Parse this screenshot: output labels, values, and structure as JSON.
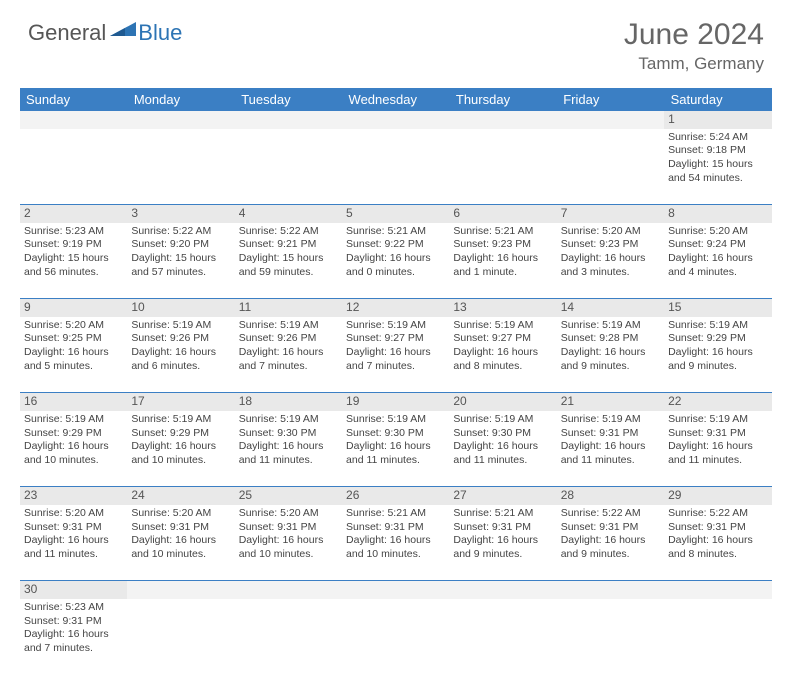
{
  "brand": {
    "part1": "General",
    "part2": "Blue",
    "accent_color": "#2d74b4",
    "text_color": "#565656"
  },
  "title": {
    "month": "June 2024",
    "location": "Tamm, Germany"
  },
  "table": {
    "header_bg": "#3b7fc4",
    "header_fg": "#ffffff",
    "row_divider": "#3b7fc4",
    "daynum_bg": "#e9e9e9",
    "columns": [
      "Sunday",
      "Monday",
      "Tuesday",
      "Wednesday",
      "Thursday",
      "Friday",
      "Saturday"
    ]
  },
  "weeks": [
    [
      null,
      null,
      null,
      null,
      null,
      null,
      {
        "n": "1",
        "sr": "Sunrise: 5:24 AM",
        "ss": "Sunset: 9:18 PM",
        "d1": "Daylight: 15 hours",
        "d2": "and 54 minutes."
      }
    ],
    [
      {
        "n": "2",
        "sr": "Sunrise: 5:23 AM",
        "ss": "Sunset: 9:19 PM",
        "d1": "Daylight: 15 hours",
        "d2": "and 56 minutes."
      },
      {
        "n": "3",
        "sr": "Sunrise: 5:22 AM",
        "ss": "Sunset: 9:20 PM",
        "d1": "Daylight: 15 hours",
        "d2": "and 57 minutes."
      },
      {
        "n": "4",
        "sr": "Sunrise: 5:22 AM",
        "ss": "Sunset: 9:21 PM",
        "d1": "Daylight: 15 hours",
        "d2": "and 59 minutes."
      },
      {
        "n": "5",
        "sr": "Sunrise: 5:21 AM",
        "ss": "Sunset: 9:22 PM",
        "d1": "Daylight: 16 hours",
        "d2": "and 0 minutes."
      },
      {
        "n": "6",
        "sr": "Sunrise: 5:21 AM",
        "ss": "Sunset: 9:23 PM",
        "d1": "Daylight: 16 hours",
        "d2": "and 1 minute."
      },
      {
        "n": "7",
        "sr": "Sunrise: 5:20 AM",
        "ss": "Sunset: 9:23 PM",
        "d1": "Daylight: 16 hours",
        "d2": "and 3 minutes."
      },
      {
        "n": "8",
        "sr": "Sunrise: 5:20 AM",
        "ss": "Sunset: 9:24 PM",
        "d1": "Daylight: 16 hours",
        "d2": "and 4 minutes."
      }
    ],
    [
      {
        "n": "9",
        "sr": "Sunrise: 5:20 AM",
        "ss": "Sunset: 9:25 PM",
        "d1": "Daylight: 16 hours",
        "d2": "and 5 minutes."
      },
      {
        "n": "10",
        "sr": "Sunrise: 5:19 AM",
        "ss": "Sunset: 9:26 PM",
        "d1": "Daylight: 16 hours",
        "d2": "and 6 minutes."
      },
      {
        "n": "11",
        "sr": "Sunrise: 5:19 AM",
        "ss": "Sunset: 9:26 PM",
        "d1": "Daylight: 16 hours",
        "d2": "and 7 minutes."
      },
      {
        "n": "12",
        "sr": "Sunrise: 5:19 AM",
        "ss": "Sunset: 9:27 PM",
        "d1": "Daylight: 16 hours",
        "d2": "and 7 minutes."
      },
      {
        "n": "13",
        "sr": "Sunrise: 5:19 AM",
        "ss": "Sunset: 9:27 PM",
        "d1": "Daylight: 16 hours",
        "d2": "and 8 minutes."
      },
      {
        "n": "14",
        "sr": "Sunrise: 5:19 AM",
        "ss": "Sunset: 9:28 PM",
        "d1": "Daylight: 16 hours",
        "d2": "and 9 minutes."
      },
      {
        "n": "15",
        "sr": "Sunrise: 5:19 AM",
        "ss": "Sunset: 9:29 PM",
        "d1": "Daylight: 16 hours",
        "d2": "and 9 minutes."
      }
    ],
    [
      {
        "n": "16",
        "sr": "Sunrise: 5:19 AM",
        "ss": "Sunset: 9:29 PM",
        "d1": "Daylight: 16 hours",
        "d2": "and 10 minutes."
      },
      {
        "n": "17",
        "sr": "Sunrise: 5:19 AM",
        "ss": "Sunset: 9:29 PM",
        "d1": "Daylight: 16 hours",
        "d2": "and 10 minutes."
      },
      {
        "n": "18",
        "sr": "Sunrise: 5:19 AM",
        "ss": "Sunset: 9:30 PM",
        "d1": "Daylight: 16 hours",
        "d2": "and 11 minutes."
      },
      {
        "n": "19",
        "sr": "Sunrise: 5:19 AM",
        "ss": "Sunset: 9:30 PM",
        "d1": "Daylight: 16 hours",
        "d2": "and 11 minutes."
      },
      {
        "n": "20",
        "sr": "Sunrise: 5:19 AM",
        "ss": "Sunset: 9:30 PM",
        "d1": "Daylight: 16 hours",
        "d2": "and 11 minutes."
      },
      {
        "n": "21",
        "sr": "Sunrise: 5:19 AM",
        "ss": "Sunset: 9:31 PM",
        "d1": "Daylight: 16 hours",
        "d2": "and 11 minutes."
      },
      {
        "n": "22",
        "sr": "Sunrise: 5:19 AM",
        "ss": "Sunset: 9:31 PM",
        "d1": "Daylight: 16 hours",
        "d2": "and 11 minutes."
      }
    ],
    [
      {
        "n": "23",
        "sr": "Sunrise: 5:20 AM",
        "ss": "Sunset: 9:31 PM",
        "d1": "Daylight: 16 hours",
        "d2": "and 11 minutes."
      },
      {
        "n": "24",
        "sr": "Sunrise: 5:20 AM",
        "ss": "Sunset: 9:31 PM",
        "d1": "Daylight: 16 hours",
        "d2": "and 10 minutes."
      },
      {
        "n": "25",
        "sr": "Sunrise: 5:20 AM",
        "ss": "Sunset: 9:31 PM",
        "d1": "Daylight: 16 hours",
        "d2": "and 10 minutes."
      },
      {
        "n": "26",
        "sr": "Sunrise: 5:21 AM",
        "ss": "Sunset: 9:31 PM",
        "d1": "Daylight: 16 hours",
        "d2": "and 10 minutes."
      },
      {
        "n": "27",
        "sr": "Sunrise: 5:21 AM",
        "ss": "Sunset: 9:31 PM",
        "d1": "Daylight: 16 hours",
        "d2": "and 9 minutes."
      },
      {
        "n": "28",
        "sr": "Sunrise: 5:22 AM",
        "ss": "Sunset: 9:31 PM",
        "d1": "Daylight: 16 hours",
        "d2": "and 9 minutes."
      },
      {
        "n": "29",
        "sr": "Sunrise: 5:22 AM",
        "ss": "Sunset: 9:31 PM",
        "d1": "Daylight: 16 hours",
        "d2": "and 8 minutes."
      }
    ],
    [
      {
        "n": "30",
        "sr": "Sunrise: 5:23 AM",
        "ss": "Sunset: 9:31 PM",
        "d1": "Daylight: 16 hours",
        "d2": "and 7 minutes."
      },
      null,
      null,
      null,
      null,
      null,
      null
    ]
  ]
}
